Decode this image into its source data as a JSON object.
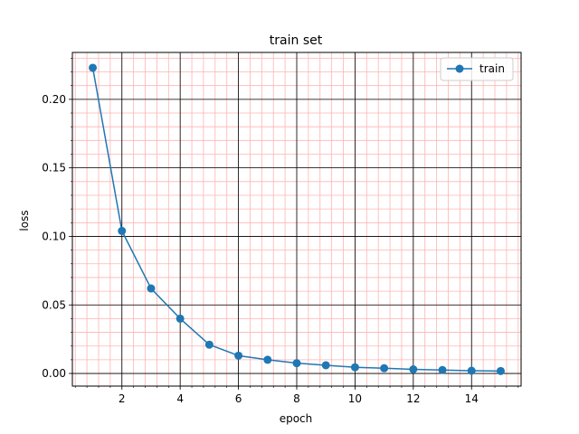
{
  "chart_data": {
    "type": "line",
    "title": "train set",
    "xlabel": "epoch",
    "ylabel": "loss",
    "xlim": [
      0.3,
      15.7
    ],
    "ylim": [
      -0.0092,
      0.2342
    ],
    "x_ticks": [
      2,
      4,
      6,
      8,
      10,
      12,
      14
    ],
    "x_tick_labels": [
      "2",
      "4",
      "6",
      "8",
      "10",
      "12",
      "14"
    ],
    "y_ticks": [
      0.0,
      0.05,
      0.1,
      0.15,
      0.2
    ],
    "y_tick_labels": [
      "0.00",
      "0.05",
      "0.10",
      "0.15",
      "0.20"
    ],
    "x_minor_step": 0.4,
    "y_minor_step": 0.01,
    "grid": true,
    "major_grid_color": "#000000",
    "minor_grid_color": "#ffb3b3",
    "legend_position": "top-right",
    "series": [
      {
        "name": "train",
        "color": "#1f77b4",
        "marker": "circle",
        "x": [
          1,
          2,
          3,
          4,
          5,
          6,
          7,
          8,
          9,
          10,
          11,
          12,
          13,
          14,
          15
        ],
        "y": [
          0.223,
          0.104,
          0.062,
          0.04,
          0.021,
          0.013,
          0.01,
          0.0075,
          0.006,
          0.0045,
          0.0038,
          0.003,
          0.0025,
          0.002,
          0.0018
        ]
      }
    ]
  }
}
